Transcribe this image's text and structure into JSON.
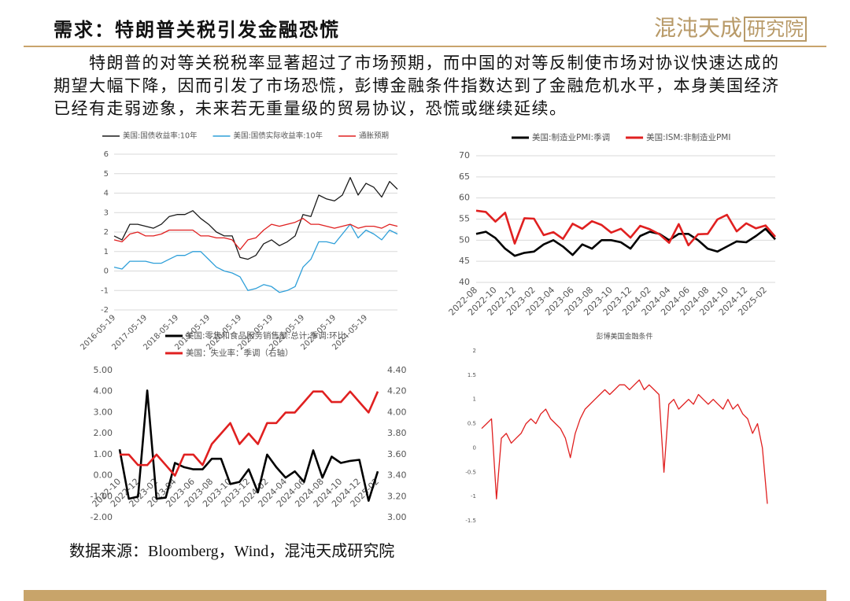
{
  "header": {
    "title": "需求：特朗普关税引发金融恐慌",
    "logo_a": "混沌天成",
    "logo_b": "研究院"
  },
  "body": "特朗普的对等关税税率显著超过了市场预期，而中国的对等反制使市场对协议快速达成的期望大幅下降，因而引发了市场恐慌，彭博金融条件指数达到了金融危机水平，本身美国经济已经有走弱迹象，未来若无重量级的贸易协议，恐慌或继续延续。",
  "source": "数据来源：Bloomberg，Wind，混沌天成研究院",
  "chart_data": [
    {
      "type": "line",
      "grid": true,
      "categories": [
        "2016-05-19",
        null,
        null,
        null,
        "2017-05-19",
        null,
        null,
        null,
        "2018-05-19",
        null,
        null,
        null,
        "2019-05-19",
        null,
        null,
        null,
        "2020-05-19",
        null,
        null,
        null,
        "2021-05-19",
        null,
        null,
        null,
        "2022-05-19",
        null,
        null,
        null,
        "2023-05-19",
        null,
        null,
        null,
        "2024-05-19",
        null,
        null,
        null,
        null
      ],
      "series": [
        {
          "name": "美国:国债收益率:10年",
          "color": "#1a1a1a",
          "values": [
            1.8,
            1.6,
            2.4,
            2.4,
            2.3,
            2.2,
            2.4,
            2.8,
            2.9,
            2.9,
            3.1,
            2.7,
            2.4,
            2.0,
            1.8,
            1.8,
            0.7,
            0.6,
            0.8,
            1.4,
            1.6,
            1.3,
            1.5,
            1.8,
            2.9,
            2.8,
            3.9,
            3.7,
            3.6,
            3.9,
            4.8,
            3.9,
            4.5,
            4.3,
            3.8,
            4.6,
            4.2
          ]
        },
        {
          "name": "美国:国债实际收益率:10年",
          "color": "#2e9fd9",
          "values": [
            0.2,
            0.1,
            0.5,
            0.5,
            0.5,
            0.4,
            0.4,
            0.6,
            0.8,
            0.8,
            1.0,
            1.0,
            0.6,
            0.2,
            0.0,
            -0.1,
            -0.3,
            -1.0,
            -0.9,
            -0.7,
            -0.8,
            -1.1,
            -1.0,
            -0.8,
            0.2,
            0.6,
            1.5,
            1.5,
            1.4,
            1.9,
            2.4,
            1.7,
            2.1,
            1.9,
            1.6,
            2.1,
            1.9
          ]
        },
        {
          "name": "通胀预期",
          "color": "#e02020",
          "values": [
            1.6,
            1.5,
            1.9,
            2.0,
            1.8,
            1.8,
            1.9,
            2.1,
            2.1,
            2.1,
            2.1,
            1.8,
            1.8,
            1.7,
            1.7,
            1.6,
            1.1,
            1.6,
            1.7,
            2.1,
            2.4,
            2.3,
            2.4,
            2.5,
            2.7,
            2.4,
            2.4,
            2.3,
            2.2,
            2.3,
            2.4,
            2.2,
            2.3,
            2.3,
            2.2,
            2.4,
            2.3
          ]
        }
      ],
      "ylim": [
        -2,
        6
      ],
      "yticks": [
        -2,
        -1,
        0,
        1,
        2,
        3,
        4,
        5,
        6
      ]
    },
    {
      "type": "line",
      "grid": true,
      "categories": [
        "2022-08",
        null,
        "2022-10",
        null,
        "2022-12",
        null,
        "2023-02",
        null,
        "2023-04",
        null,
        "2023-06",
        null,
        "2023-08",
        null,
        "2023-10",
        null,
        "2023-12",
        null,
        "2024-02",
        null,
        "2024-04",
        null,
        "2024-06",
        null,
        "2024-08",
        null,
        "2024-10",
        null,
        "2024-12",
        null,
        "2025-02",
        null
      ],
      "series": [
        {
          "name": "美国:制造业PMI:季调",
          "color": "#000000",
          "values": [
            51.5,
            52,
            50.5,
            48,
            46.3,
            47,
            47.3,
            49,
            50,
            48.5,
            46.5,
            49,
            48,
            50,
            50,
            49.5,
            48,
            51,
            52,
            51.5,
            50,
            51.5,
            51.5,
            50,
            48,
            47.3,
            48.5,
            49.7,
            49.5,
            51,
            52.7,
            50.2
          ]
        },
        {
          "name": "美国:ISM:非制造业PMI",
          "color": "#e02020",
          "values": [
            57,
            56.7,
            54.4,
            56.5,
            49.2,
            55.2,
            55.1,
            51.2,
            51.9,
            50.3,
            53.9,
            52.7,
            54.5,
            53.6,
            51.8,
            52.7,
            50.6,
            53.4,
            52.6,
            51.4,
            49.4,
            53.8,
            48.8,
            51.4,
            51.5,
            54.9,
            56,
            52.1,
            54,
            52.8,
            53.5,
            50.8
          ]
        }
      ],
      "ylim": [
        40,
        70
      ],
      "yticks": [
        40,
        45,
        50,
        55,
        60,
        65,
        70
      ]
    },
    {
      "type": "line",
      "grid": false,
      "categories": [
        "2022-10",
        null,
        "2022-12",
        null,
        "2023-02",
        null,
        "2023-04",
        null,
        "2023-06",
        null,
        "2023-08",
        null,
        "2023-10",
        null,
        "2023-12",
        null,
        "2024-02",
        null,
        "2024-04",
        null,
        "2024-06",
        null,
        "2024-08",
        null,
        "2024-10",
        null,
        "2024-12",
        null,
        "2025-02"
      ],
      "series": [
        {
          "name": "美国:零售和食品服务销售额:总计:季调:环比",
          "color": "#000000",
          "values": [
            1.25,
            -1.1,
            -1.0,
            4.05,
            -1.1,
            -1.05,
            0.6,
            0.4,
            0.3,
            0.3,
            0.8,
            0.8,
            -0.4,
            -0.3,
            0.3,
            -0.8,
            1.0,
            0.4,
            -0.1,
            0.2,
            -0.3,
            1.2,
            -0.1,
            0.9,
            0.6,
            0.7,
            0.75,
            -1.2,
            0.2
          ]
        },
        {
          "name": "美国：失业率：季调（右轴）",
          "color": "#e02020",
          "axis": "y2",
          "values": [
            3.6,
            3.6,
            3.5,
            3.5,
            3.6,
            3.5,
            3.4,
            3.6,
            3.6,
            3.5,
            3.7,
            3.8,
            3.9,
            3.7,
            3.8,
            3.7,
            3.9,
            3.9,
            4.0,
            4.0,
            4.1,
            4.2,
            4.2,
            4.1,
            4.1,
            4.2,
            4.1,
            4.0,
            4.2
          ]
        }
      ],
      "ylim": [
        -2,
        5
      ],
      "yticks": [
        {
          "value": -2,
          "label": "-2.00"
        },
        {
          "value": -1,
          "label": "-1.00"
        },
        {
          "value": 0,
          "label": "0.00"
        },
        {
          "value": 1,
          "label": "1.00"
        },
        {
          "value": 2,
          "label": "2.00"
        },
        {
          "value": 3,
          "label": "3.00"
        },
        {
          "value": 4,
          "label": "4.00"
        },
        {
          "value": 5,
          "label": "5.00"
        }
      ],
      "y2lim": [
        3,
        4.4
      ],
      "y2ticks": [
        {
          "value": 3,
          "label": "3.00"
        },
        {
          "value": 3.2,
          "label": "3.20"
        },
        {
          "value": 3.4,
          "label": "3.40"
        },
        {
          "value": 3.6,
          "label": "3.60"
        },
        {
          "value": 3.8,
          "label": "3.80"
        },
        {
          "value": 4,
          "label": "4.00"
        },
        {
          "value": 4.2,
          "label": "4.20"
        },
        {
          "value": 4.4,
          "label": "4.40"
        }
      ]
    },
    {
      "type": "line",
      "grid": false,
      "title": "彭博美国金融条件",
      "series": [
        {
          "color": "#e02020",
          "values": [
            0.4,
            0.5,
            0.6,
            -1.05,
            0.2,
            0.3,
            0.1,
            0.2,
            0.3,
            0.5,
            0.6,
            0.5,
            0.7,
            0.8,
            0.6,
            0.5,
            0.4,
            0.2,
            -0.2,
            0.3,
            0.6,
            0.8,
            0.9,
            1.0,
            1.1,
            1.2,
            1.1,
            1.2,
            1.3,
            1.3,
            1.2,
            1.3,
            1.4,
            1.2,
            1.3,
            1.2,
            1.1,
            -0.5,
            0.9,
            1.0,
            0.8,
            0.9,
            1.0,
            0.9,
            1.1,
            1.0,
            0.9,
            1.0,
            0.9,
            0.8,
            1.0,
            0.8,
            0.9,
            0.7,
            0.6,
            0.3,
            0.5,
            0.0,
            -1.15
          ]
        }
      ],
      "ylim": [
        -1.5,
        2
      ],
      "yticks": [
        -1.5,
        -1,
        -0.5,
        0,
        0.5,
        1,
        1.5,
        2
      ]
    }
  ]
}
